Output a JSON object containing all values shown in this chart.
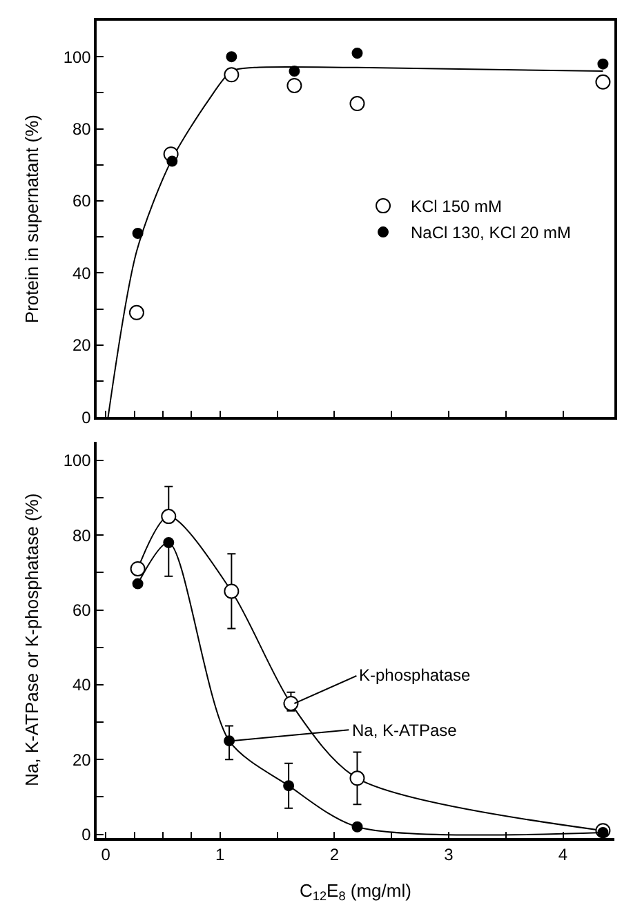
{
  "chart_data": [
    {
      "type": "scatter",
      "ylabel": "Protein in supernatant (%)",
      "xlim": [
        -0.08,
        4.45
      ],
      "xticks": [
        {
          "value": 0,
          "label": null
        },
        {
          "value": 0.25,
          "label": null
        },
        {
          "value": 0.5,
          "label": null
        },
        {
          "value": 0.75,
          "label": null
        },
        {
          "value": 1,
          "label": null
        },
        {
          "value": 1.5,
          "label": null
        },
        {
          "value": 2,
          "label": null
        },
        {
          "value": 2.5,
          "label": null
        },
        {
          "value": 3,
          "label": null
        },
        {
          "value": 3.5,
          "label": null
        },
        {
          "value": 4,
          "label": null
        }
      ],
      "ylim": [
        0,
        110
      ],
      "yticks": [
        0,
        {
          "value": 10,
          "label": null
        },
        20,
        {
          "value": 30,
          "label": null
        },
        40,
        {
          "value": 50,
          "label": null
        },
        60,
        {
          "value": 70,
          "label": null
        },
        80,
        {
          "value": 90,
          "label": null
        },
        100
      ],
      "tick_labels": "y",
      "legend": "right",
      "marker": "circle",
      "series": [
        {
          "type": "line",
          "marker": "none",
          "color": "#000000",
          "x": [
            0.02,
            0.27,
            0.57,
            0.9,
            1.1,
            1.3,
            2.2,
            4.35
          ],
          "values": [
            0,
            46,
            71,
            88,
            96,
            97,
            97,
            96
          ]
        },
        {
          "name": "KCl 150 mM",
          "color": "#ffffff",
          "x": [
            0.27,
            0.57,
            1.1,
            1.65,
            2.2,
            4.35
          ],
          "values": [
            29,
            73,
            95,
            92,
            87,
            93
          ]
        },
        {
          "name": "NaCl 130, KCl 20 mM",
          "color": "#000000",
          "x": [
            0.28,
            0.58,
            1.1,
            1.65,
            2.2,
            4.35
          ],
          "values": [
            51,
            71,
            100,
            96,
            101,
            98
          ]
        }
      ]
    },
    {
      "type": "line",
      "xlabel": "C$_{12}$E$_{8}$ (mg/ml)",
      "ylabel": "Na, K-ATPase or K-phosphatase (%)",
      "xlim": [
        -0.08,
        4.45
      ],
      "xticks": [
        0,
        {
          "value": 0.25,
          "label": null
        },
        {
          "value": 0.5,
          "label": null
        },
        {
          "value": 0.75,
          "label": null
        },
        1,
        {
          "value": 1.5,
          "label": null
        },
        2,
        {
          "value": 2.5,
          "label": null
        },
        3,
        {
          "value": 3.5,
          "label": null
        },
        4
      ],
      "ylim": [
        -1,
        105
      ],
      "yticks": [
        0,
        {
          "value": 10,
          "label": null
        },
        20,
        {
          "value": 30,
          "label": null
        },
        40,
        {
          "value": 50,
          "label": null
        },
        60,
        {
          "value": 70,
          "label": null
        },
        80,
        {
          "value": 90,
          "label": null
        },
        100
      ],
      "marker": "circle",
      "annotations": [
        {
          "text": "K-phosphatase",
          "x": 1.65,
          "y": 35
        },
        {
          "text": "Na, K-ATPase",
          "x": 1.1,
          "y": 25
        }
      ],
      "series": [
        {
          "color": "#ffffff",
          "x": [
            0.28,
            0.55,
            1.1,
            1.62,
            2.2,
            4.35
          ],
          "values": [
            71,
            85,
            65,
            35,
            15,
            1
          ],
          "errors": [
            null,
            [
              85,
              93
            ],
            [
              55,
              75
            ],
            [
              33,
              38
            ],
            [
              8,
              22
            ],
            null
          ]
        },
        {
          "color": "#000000",
          "x": [
            0.28,
            0.55,
            1.08,
            1.6,
            2.2,
            4.35
          ],
          "values": [
            67,
            78,
            25,
            13,
            2,
            0.5
          ],
          "errors": [
            null,
            [
              69,
              78
            ],
            [
              20,
              29
            ],
            [
              7,
              19
            ],
            null,
            null
          ]
        }
      ]
    }
  ]
}
